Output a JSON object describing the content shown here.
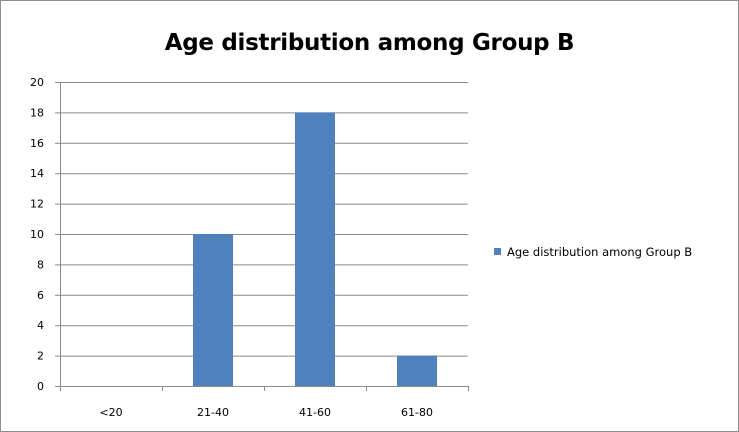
{
  "chart_data": {
    "type": "bar",
    "title": "Age distribution among Group B",
    "categories": [
      "<20",
      "21-40",
      "41-60",
      "61-80"
    ],
    "series": [
      {
        "name": "Age distribution among Group B",
        "values": [
          0,
          10,
          18,
          2
        ],
        "color": "#4f81bd"
      }
    ],
    "yticks": [
      0,
      2,
      4,
      6,
      8,
      10,
      12,
      14,
      16,
      18,
      20
    ],
    "ylim": [
      0,
      20
    ],
    "grid": true,
    "legend": "right"
  }
}
